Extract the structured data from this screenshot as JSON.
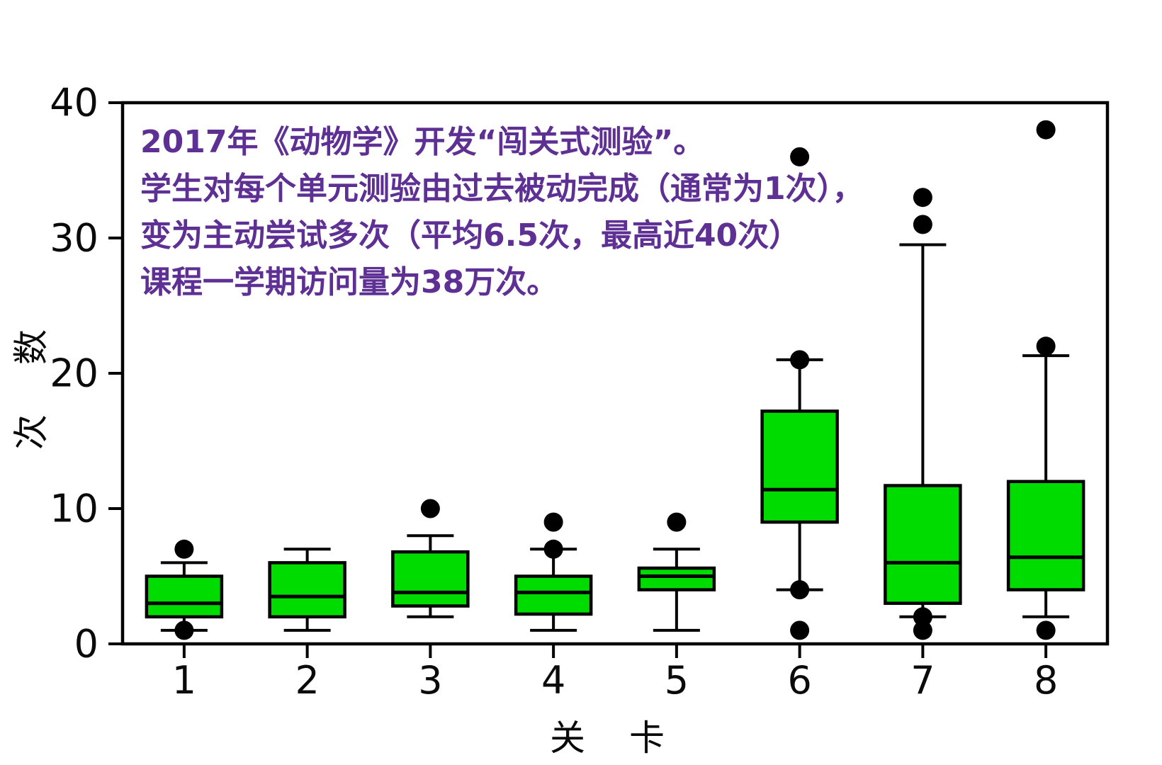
{
  "colors": {
    "box_fill": "#00dc00",
    "stroke": "#000000",
    "annotation_text": "#5f3094",
    "background": "#ffffff"
  },
  "annotation": {
    "lines": [
      "2017年《动物学》开发“闯关式测验”。",
      "学生对每个单元测验由过去被动完成（通常为1次），",
      "变为主动尝试多次（平均6.5次，最高近40次）",
      "课程一学期访问量为38万次。"
    ]
  },
  "chart_data": {
    "type": "box",
    "title": "",
    "xlabel": "关　卡",
    "ylabel": "次　数",
    "ylim": [
      0,
      40
    ],
    "yticks": [
      0,
      10,
      20,
      30,
      40
    ],
    "grid": false,
    "legend": "none",
    "categories": [
      "1",
      "2",
      "3",
      "4",
      "5",
      "6",
      "7",
      "8"
    ],
    "boxes": [
      {
        "category": "1",
        "whisker_low": 1,
        "q1": 2,
        "median": 3,
        "q3": 5,
        "whisker_high": 6,
        "outliers": [
          7,
          1
        ]
      },
      {
        "category": "2",
        "whisker_low": 1,
        "q1": 2,
        "median": 3.5,
        "q3": 6,
        "whisker_high": 7,
        "outliers": []
      },
      {
        "category": "3",
        "whisker_low": 2,
        "q1": 2.8,
        "median": 3.8,
        "q3": 6.8,
        "whisker_high": 8,
        "outliers": [
          10
        ]
      },
      {
        "category": "4",
        "whisker_low": 1,
        "q1": 2.2,
        "median": 3.8,
        "q3": 5,
        "whisker_high": 7,
        "outliers": [
          9,
          7
        ]
      },
      {
        "category": "5",
        "whisker_low": 1,
        "q1": 4,
        "median": 5,
        "q3": 5.6,
        "whisker_high": 7,
        "outliers": [
          9
        ]
      },
      {
        "category": "6",
        "whisker_low": 4,
        "q1": 9,
        "median": 11.4,
        "q3": 17.2,
        "whisker_high": 21,
        "outliers": [
          36,
          21,
          4,
          1
        ]
      },
      {
        "category": "7",
        "whisker_low": 2,
        "q1": 3,
        "median": 6,
        "q3": 11.7,
        "whisker_high": 29.5,
        "outliers": [
          33,
          31,
          2,
          1
        ]
      },
      {
        "category": "8",
        "whisker_low": 2,
        "q1": 4,
        "median": 6.4,
        "q3": 12,
        "whisker_high": 21.3,
        "outliers": [
          38,
          22,
          1
        ]
      }
    ]
  }
}
